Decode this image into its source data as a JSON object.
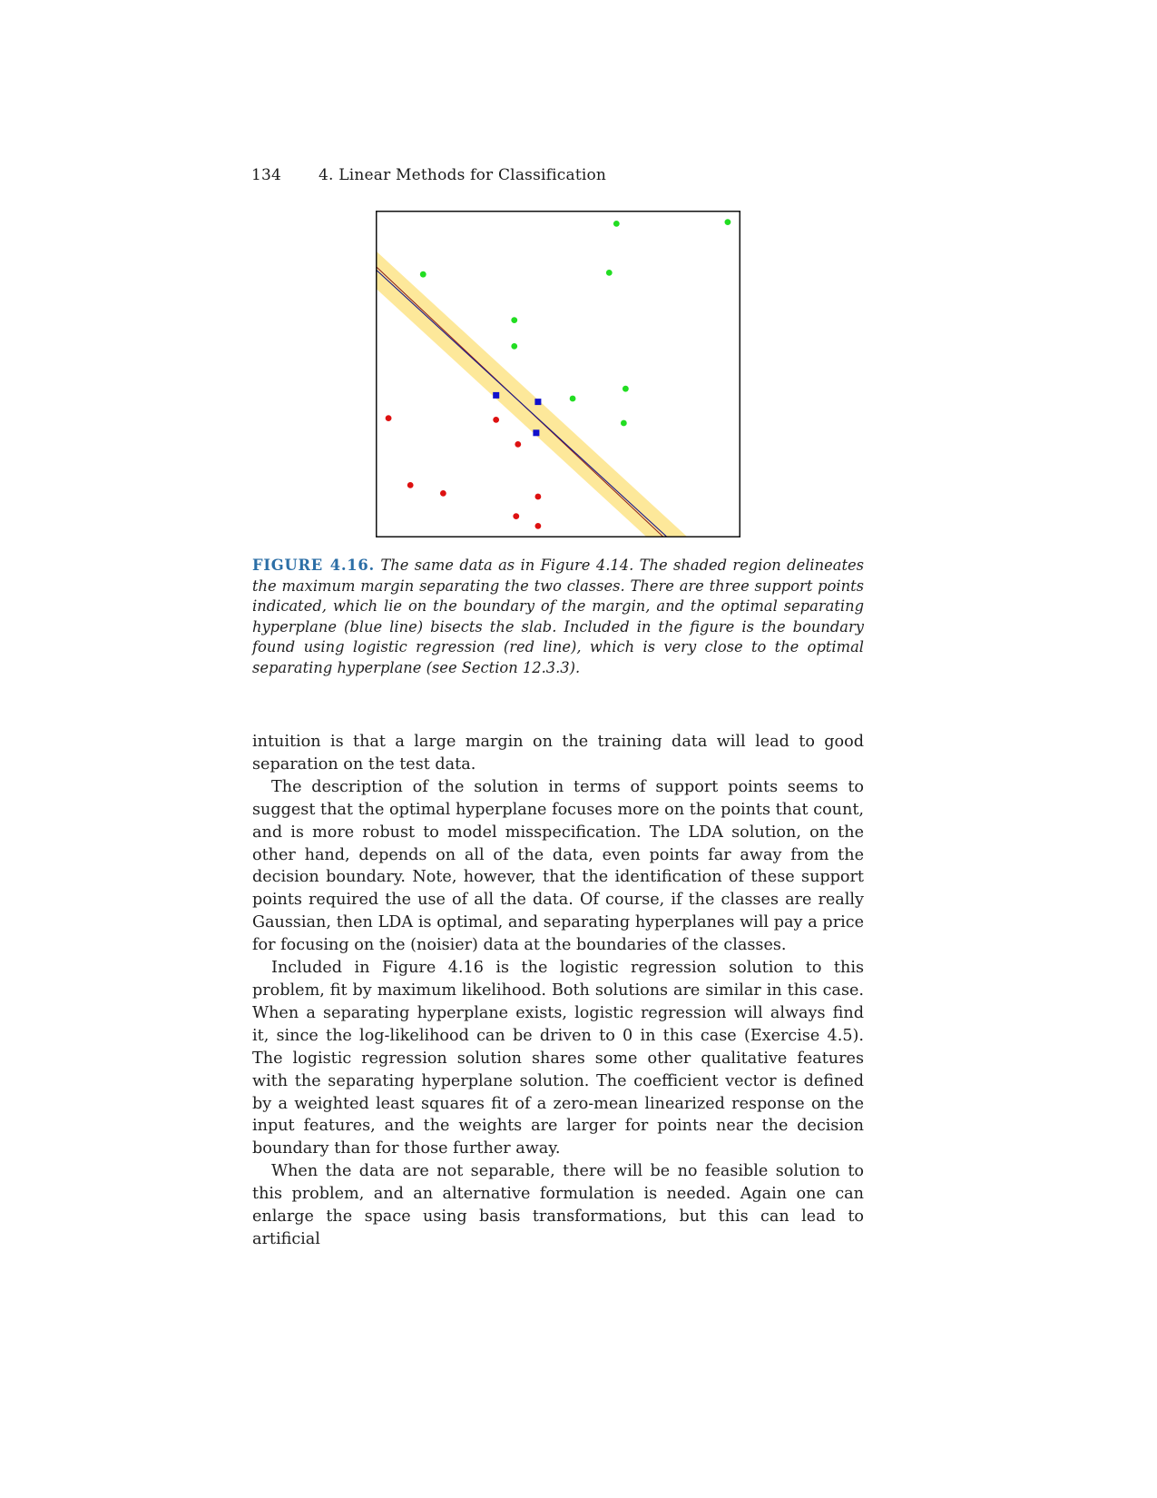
{
  "running_head": {
    "page_number": "134",
    "chapter": "4. Linear Methods for Classification"
  },
  "figure": {
    "label": "FIGURE 4.16.",
    "caption": "The same data as in Figure 4.14. The shaded region delineates the maximum margin separating the two classes. There are three support points indicated, which lie on the boundary of the margin, and the optimal separating hyperplane (blue line) bisects the slab. Included in the figure is the boundary found using logistic regression (red line), which is very close to the optimal separating hyperplane (see Section 12.3.3)."
  },
  "chart_data": {
    "type": "scatter",
    "title": "",
    "xlabel": "",
    "ylabel": "",
    "xlim": [
      0,
      100
    ],
    "ylim": [
      0,
      100
    ],
    "grid": false,
    "colors": {
      "green_class": "#22dd22",
      "red_class": "#dd1111",
      "support_points": "#1111cc",
      "margin_slab": "#fde89a",
      "hyperplane": "#1a1a8a",
      "logistic_line": "#8a1a1a"
    },
    "series": [
      {
        "class": "green",
        "points": [
          [
            66,
            96
          ],
          [
            96.5,
            96.5
          ],
          [
            13,
            80.5
          ],
          [
            64,
            81
          ],
          [
            38,
            66.5
          ],
          [
            38,
            58.5
          ],
          [
            54,
            42.5
          ],
          [
            68,
            35
          ],
          [
            68.5,
            45.5
          ]
        ]
      },
      {
        "class": "red",
        "points": [
          [
            3.5,
            36.5
          ],
          [
            33,
            36
          ],
          [
            39,
            28.5
          ],
          [
            9.5,
            16
          ],
          [
            18.5,
            13.5
          ],
          [
            44.5,
            12.5
          ],
          [
            38.5,
            6.5
          ],
          [
            44.5,
            3.5
          ]
        ]
      },
      {
        "class": "support",
        "points": [
          [
            33,
            43.5
          ],
          [
            44.5,
            41.5
          ],
          [
            44,
            32
          ]
        ]
      }
    ],
    "hyperplane": [
      [
        0,
        82
      ],
      [
        80,
        0
      ]
    ],
    "logistic_line": [
      [
        0,
        83
      ],
      [
        79,
        0
      ]
    ],
    "margin_half_width": 4
  },
  "body": {
    "paragraphs": [
      "intuition is that a large margin on the training data will lead to good separation on the test data.",
      "The description of the solution in terms of support points seems to suggest that the optimal hyperplane focuses more on the points that count, and is more robust to model misspecification. The LDA solution, on the other hand, depends on all of the data, even points far away from the decision boundary. Note, however, that the identification of these support points required the use of all the data. Of course, if the classes are really Gaussian, then LDA is optimal, and separating hyperplanes will pay a price for focusing on the (noisier) data at the boundaries of the classes.",
      "Included in Figure 4.16 is the logistic regression solution to this problem, fit by maximum likelihood. Both solutions are similar in this case. When a separating hyperplane exists, logistic regression will always find it, since the log-likelihood can be driven to 0 in this case (Exercise 4.5). The logistic regression solution shares some other qualitative features with the separating hyperplane solution. The coefficient vector is defined by a weighted least squares fit of a zero-mean linearized response on the input features, and the weights are larger for points near the decision boundary than for those further away.",
      "When the data are not separable, there will be no feasible solution to this problem, and an alternative formulation is needed. Again one can enlarge the space using basis transformations, but this can lead to artificial"
    ]
  }
}
